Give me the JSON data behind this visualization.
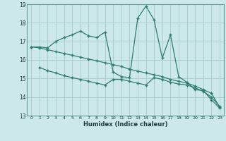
{
  "xlabel": "Humidex (Indice chaleur)",
  "bg_color": "#cce8e8",
  "grid_color": "#aacece",
  "line_color": "#2e7d6e",
  "xlim": [
    -0.5,
    23.5
  ],
  "ylim": [
    13,
    19
  ],
  "xticks": [
    0,
    1,
    2,
    3,
    4,
    5,
    6,
    7,
    8,
    9,
    10,
    11,
    12,
    13,
    14,
    15,
    16,
    17,
    18,
    19,
    20,
    21,
    22,
    23
  ],
  "yticks": [
    13,
    14,
    15,
    16,
    17,
    18,
    19
  ],
  "line1_x": [
    0,
    1,
    2,
    3,
    4,
    5,
    6,
    7,
    8,
    9,
    10,
    11,
    12,
    13,
    14,
    15,
    16,
    17,
    18,
    19,
    20,
    21,
    22,
    23
  ],
  "line1_y": [
    16.7,
    16.7,
    16.65,
    17.0,
    17.2,
    17.35,
    17.55,
    17.3,
    17.2,
    17.5,
    15.35,
    15.1,
    15.05,
    18.25,
    18.9,
    18.15,
    16.1,
    17.35,
    15.1,
    14.8,
    14.4,
    14.35,
    13.85,
    13.4
  ],
  "line2_x": [
    0,
    1,
    2,
    3,
    4,
    5,
    6,
    7,
    8,
    9,
    10,
    11,
    12,
    13,
    14,
    15,
    16,
    17,
    18,
    19,
    20,
    21,
    22,
    23
  ],
  "line2_y": [
    16.7,
    16.65,
    16.55,
    16.45,
    16.35,
    16.25,
    16.15,
    16.05,
    15.95,
    15.85,
    15.75,
    15.65,
    15.5,
    15.4,
    15.3,
    15.2,
    15.1,
    14.95,
    14.85,
    14.75,
    14.6,
    14.4,
    14.2,
    13.45
  ],
  "line3_x": [
    1,
    2,
    3,
    4,
    5,
    6,
    7,
    8,
    9,
    10,
    11,
    12,
    13,
    14,
    15,
    16,
    17,
    18,
    19,
    20,
    21,
    22,
    23
  ],
  "line3_y": [
    15.6,
    15.42,
    15.3,
    15.15,
    15.05,
    14.95,
    14.85,
    14.75,
    14.65,
    14.95,
    14.95,
    14.85,
    14.75,
    14.65,
    15.05,
    14.95,
    14.8,
    14.7,
    14.65,
    14.5,
    14.3,
    14.0,
    13.5
  ]
}
